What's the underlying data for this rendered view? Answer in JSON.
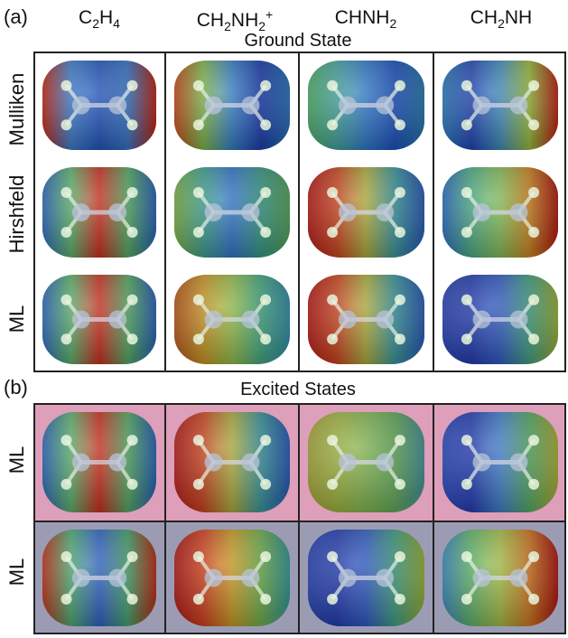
{
  "panels": {
    "a_label": "(a)",
    "b_label": "(b)",
    "ground_title": "Ground State",
    "excited_title": "Excited States"
  },
  "columns": [
    {
      "base": "C",
      "sub1": "2",
      "mid": "H",
      "sub2": "4",
      "sup": ""
    },
    {
      "base": "CH",
      "sub1": "2",
      "mid": "NH",
      "sub2": "2",
      "sup": "+"
    },
    {
      "base": "CHNH",
      "sub1": "2",
      "mid": "",
      "sub2": "",
      "sup": ""
    },
    {
      "base": "CH",
      "sub1": "2",
      "mid": "NH",
      "sub2": "",
      "sup": ""
    }
  ],
  "ground_rows": [
    "Mulliken",
    "Hirshfeld",
    "ML"
  ],
  "excited_rows": [
    "ML",
    "ML"
  ],
  "colors": {
    "excited_row1_bg": "#dd9fb9",
    "excited_row2_bg": "#9b9cb4",
    "grid_line": "#222222"
  },
  "surfaces": {
    "ground": [
      [
        "red-ends-blue-center",
        "blue-right-red-left",
        "blue-green-uniform",
        "blue-left-red-right"
      ],
      [
        "red-center-blue-ends",
        "green-blue-mix",
        "red-left-blue-right",
        "green-center-red-right"
      ],
      [
        "red-center-blue-ends",
        "orange-left-green-right",
        "red-left-blue-right",
        "blue-dominant"
      ]
    ],
    "excited": [
      [
        "red-center-blue-ends",
        "red-left-blue-right",
        "green-yellow-uniform",
        "blue-left-green-right"
      ],
      [
        "blue-center-red-ends",
        "red-left-green-right",
        "blue-dominant",
        "green-left-red-right"
      ]
    ]
  }
}
